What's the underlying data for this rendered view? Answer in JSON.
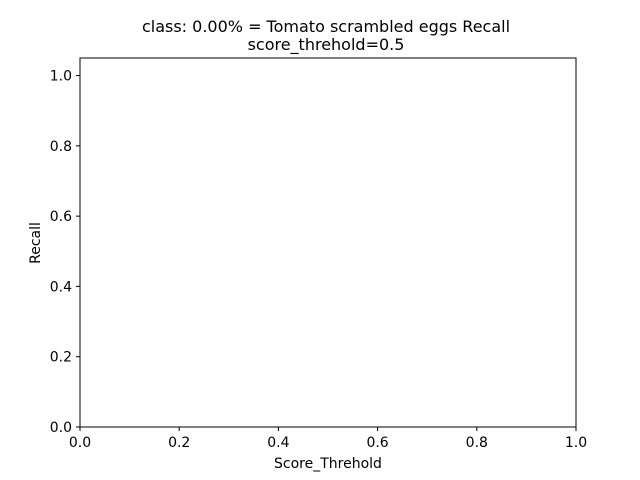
{
  "chart_data": {
    "type": "line",
    "title": "class: 0.00% = Tomato scrambled eggs Recall",
    "subtitle": "score_threhold=0.5",
    "xlabel": "Score_Threhold",
    "ylabel": "Recall",
    "xlim": [
      0.0,
      1.0
    ],
    "ylim": [
      0.0,
      1.05
    ],
    "xticks": [
      0.0,
      0.2,
      0.4,
      0.6,
      0.8,
      1.0
    ],
    "xtick_labels": [
      "0.0",
      "0.2",
      "0.4",
      "0.6",
      "0.8",
      "1.0"
    ],
    "yticks": [
      0.0,
      0.2,
      0.4,
      0.6,
      0.8,
      1.0
    ],
    "ytick_labels": [
      "0.0",
      "0.2",
      "0.4",
      "0.6",
      "0.8",
      "1.0"
    ],
    "grid": false,
    "series": []
  }
}
